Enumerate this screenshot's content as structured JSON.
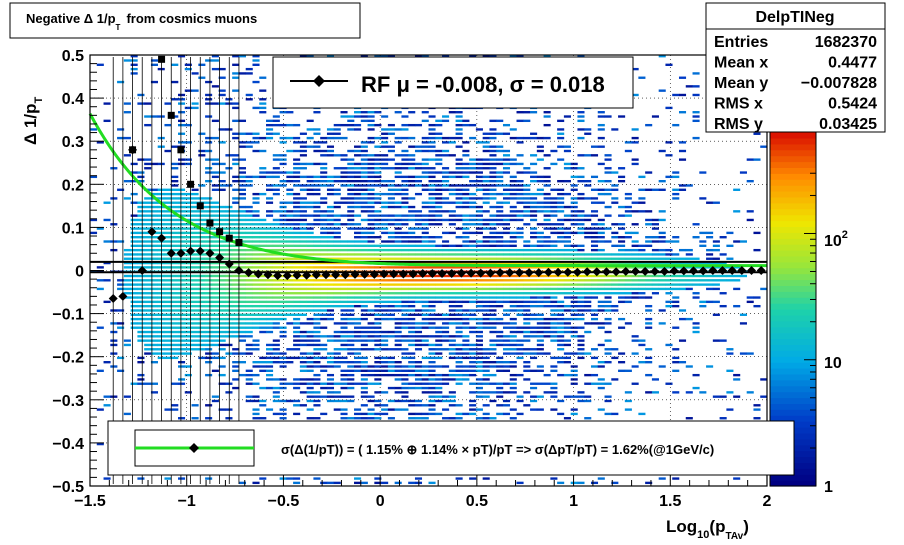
{
  "title": "Negative Δ 1/p_T from cosmics muons",
  "title_parts": {
    "main": "Negative Δ 1/p",
    "sub": "T",
    "rest": "from cosmics muons"
  },
  "stats_box": {
    "name": "DelpTINeg",
    "rows": [
      {
        "label": "Entries",
        "value": "1682370"
      },
      {
        "label": "Mean x",
        "value": "0.4477"
      },
      {
        "label": "Mean y",
        "value": "−0.007828"
      },
      {
        "label": "RMS x",
        "value": "0.5424"
      },
      {
        "label": "RMS y",
        "value": "0.03425"
      }
    ]
  },
  "fit_box": {
    "text": "RF μ = -0.008, σ =   0.018"
  },
  "legend": {
    "text": "σ(Δ(1/pT)) = ( 1.15% ⊕  1.14% × pT)/pT => σ(ΔpT/pT) =  1.62%(@1GeV/c)"
  },
  "colors": {
    "fit_curve": "#22dd22",
    "marker": "#000000",
    "frame": "#000000"
  },
  "chart_data": {
    "type": "heatmap",
    "title": "Negative Δ 1/p_T from cosmics muons",
    "xlabel": "Log10(p_TAv)",
    "xlabel_parts": {
      "main": "Log",
      "sub1": "10",
      "mid": "(p",
      "sub2": "TAv",
      "end": ")"
    },
    "ylabel": "Δ 1/p_T",
    "ylabel_parts": {
      "main": "Δ 1/p",
      "sub": "T"
    },
    "xlim": [
      -1.5,
      2
    ],
    "ylim": [
      -0.5,
      0.5
    ],
    "xticks": [
      -1.5,
      -1,
      -0.5,
      0,
      0.5,
      1,
      1.5,
      2
    ],
    "xtick_labels": [
      "−1.5",
      "−1",
      "−0.5",
      "0",
      "0.5",
      "1",
      "1.5",
      "2"
    ],
    "yticks": [
      -0.5,
      -0.4,
      -0.3,
      -0.2,
      -0.1,
      0,
      0.1,
      0.2,
      0.3,
      0.4,
      0.5
    ],
    "ytick_labels": [
      "−0.5",
      "−0.4",
      "−0.3",
      "−0.2",
      "−0.1",
      "0",
      "0.1",
      "0.2",
      "0.3",
      "0.4",
      "0.5"
    ],
    "grid": true,
    "colorbar": {
      "scale": "log",
      "range": [
        1,
        1000
      ],
      "labels": [
        "1",
        "10",
        "10^2"
      ]
    },
    "mean_points": {
      "x": [
        -1.38,
        -1.33,
        -1.28,
        -1.23,
        -1.18,
        -1.13,
        -1.08,
        -1.03,
        -0.98,
        -0.93,
        -0.88,
        -0.83,
        -0.78,
        -0.73,
        -0.68,
        -0.63,
        -0.58,
        -0.53,
        -0.48,
        -0.43,
        -0.38,
        -0.33,
        -0.28,
        -0.23,
        -0.18,
        -0.13,
        -0.08,
        -0.03,
        0.02,
        0.07,
        0.12,
        0.17,
        0.22,
        0.27,
        0.32,
        0.37,
        0.42,
        0.47,
        0.52,
        0.57,
        0.62,
        0.67,
        0.72,
        0.77,
        0.82,
        0.87,
        0.92,
        0.97,
        1.02,
        1.07,
        1.12,
        1.17,
        1.22,
        1.27,
        1.32,
        1.37,
        1.42,
        1.47,
        1.52,
        1.57,
        1.62,
        1.67,
        1.72,
        1.77,
        1.82,
        1.87,
        1.92,
        1.97
      ],
      "y": [
        -0.065,
        -0.06,
        0.28,
        0.0,
        0.09,
        0.075,
        0.04,
        0.04,
        0.045,
        0.045,
        0.04,
        0.03,
        0.015,
        0.0,
        -0.005,
        -0.008,
        -0.01,
        -0.012,
        -0.012,
        -0.011,
        -0.011,
        -0.01,
        -0.01,
        -0.01,
        -0.01,
        -0.009,
        -0.009,
        -0.009,
        -0.008,
        -0.008,
        -0.008,
        -0.008,
        -0.007,
        -0.007,
        -0.007,
        -0.007,
        -0.006,
        -0.006,
        -0.006,
        -0.006,
        -0.005,
        -0.005,
        -0.005,
        -0.005,
        -0.005,
        -0.004,
        -0.004,
        -0.004,
        -0.004,
        -0.003,
        -0.003,
        -0.003,
        -0.003,
        -0.002,
        -0.002,
        -0.002,
        -0.002,
        -0.002,
        -0.001,
        -0.001,
        -0.001,
        -0.001,
        0.0,
        0.0,
        0.0,
        0.0,
        0.0,
        0.0
      ]
    },
    "sigma_points": {
      "x": [
        -1.28,
        -1.13,
        -1.08,
        -1.03,
        -0.98,
        -0.93,
        -0.88,
        -0.83,
        -0.78,
        -0.73
      ],
      "y": [
        0.28,
        0.49,
        0.36,
        0.28,
        0.2,
        0.15,
        0.11,
        0.09,
        0.075,
        0.065
      ]
    },
    "fit_curve": {
      "stable": 0.0115,
      "linear_coefficient": 0.0114
    },
    "reference_lines": [
      0.02,
      -0.004
    ]
  }
}
